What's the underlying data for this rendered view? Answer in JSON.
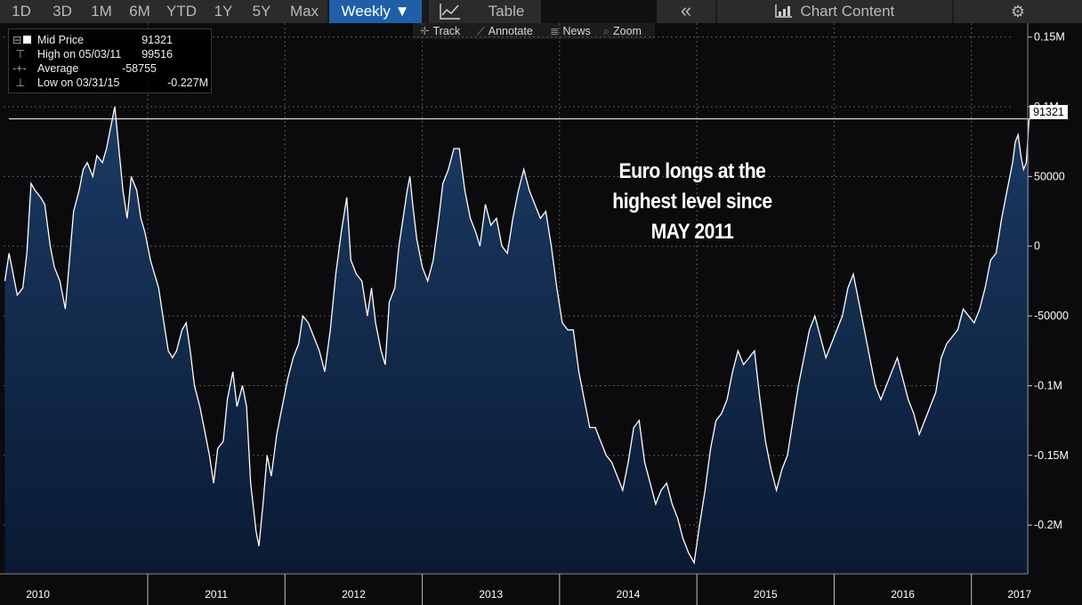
{
  "toolbar": {
    "ranges": [
      "1D",
      "3D",
      "1M",
      "6M",
      "YTD",
      "1Y",
      "5Y",
      "Max"
    ],
    "frequency": "Weekly ▼",
    "chart_icon": "line-chart-icon",
    "table": "Table",
    "collapse_icon": "double-chevron-left-icon",
    "chart_content": "Chart Content",
    "settings_icon": "gear-icon"
  },
  "subbar": {
    "track": "Track",
    "annotate": "Annotate",
    "news": "News",
    "zoom": "Zoom"
  },
  "legend": {
    "mid_label": "Mid Price",
    "mid_value": "91321",
    "high_label": "High on 05/03/11",
    "high_value": "99516",
    "avg_label": "Average",
    "avg_value": "-58755",
    "low_label": "Low on 03/31/15",
    "low_value": "-0.227M"
  },
  "annotation": {
    "line1": "Euro longs at the",
    "line2": "highest level since",
    "line3": "MAY 2011"
  },
  "last_value_label": "91321",
  "colors": {
    "line": "#ffffff",
    "area_top": "#1b3a63",
    "area_bottom": "#0a1a33",
    "grid": "#5a5a5a",
    "active_tab": "#1e5fa8"
  },
  "chart_data": {
    "type": "area",
    "y_tick_labels": [
      "0.15M",
      "0.1M",
      "50000",
      "0",
      "-50000",
      "-0.1M",
      "-0.15M",
      "-0.2M"
    ],
    "x_tick_labels": [
      "2010",
      "2011",
      "2012",
      "2013",
      "2014",
      "2015",
      "2016",
      "2017"
    ],
    "ylim": [
      -235000,
      160000
    ],
    "xlim": [
      2009.95,
      2017.3
    ],
    "grid": true,
    "last_value": 91321,
    "points": [
      [
        2009.96,
        -25000
      ],
      [
        2009.99,
        -5000
      ],
      [
        2010.02,
        -20000
      ],
      [
        2010.05,
        -35000
      ],
      [
        2010.09,
        -30000
      ],
      [
        2010.12,
        -5000
      ],
      [
        2010.15,
        45000
      ],
      [
        2010.18,
        40000
      ],
      [
        2010.22,
        35000
      ],
      [
        2010.25,
        30000
      ],
      [
        2010.29,
        0
      ],
      [
        2010.32,
        -15000
      ],
      [
        2010.36,
        -25000
      ],
      [
        2010.4,
        -45000
      ],
      [
        2010.43,
        -10000
      ],
      [
        2010.46,
        25000
      ],
      [
        2010.5,
        40000
      ],
      [
        2010.53,
        55000
      ],
      [
        2010.56,
        60000
      ],
      [
        2010.6,
        50000
      ],
      [
        2010.63,
        65000
      ],
      [
        2010.67,
        60000
      ],
      [
        2010.7,
        70000
      ],
      [
        2010.73,
        85000
      ],
      [
        2010.76,
        100000
      ],
      [
        2010.79,
        70000
      ],
      [
        2010.82,
        40000
      ],
      [
        2010.85,
        20000
      ],
      [
        2010.88,
        50000
      ],
      [
        2010.92,
        40000
      ],
      [
        2010.95,
        20000
      ],
      [
        2010.98,
        10000
      ],
      [
        2011.02,
        -10000
      ],
      [
        2011.05,
        -20000
      ],
      [
        2011.08,
        -30000
      ],
      [
        2011.11,
        -50000
      ],
      [
        2011.15,
        -75000
      ],
      [
        2011.18,
        -80000
      ],
      [
        2011.21,
        -75000
      ],
      [
        2011.25,
        -60000
      ],
      [
        2011.28,
        -55000
      ],
      [
        2011.31,
        -75000
      ],
      [
        2011.34,
        -100000
      ],
      [
        2011.38,
        -115000
      ],
      [
        2011.41,
        -130000
      ],
      [
        2011.45,
        -150000
      ],
      [
        2011.48,
        -170000
      ],
      [
        2011.51,
        -145000
      ],
      [
        2011.55,
        -140000
      ],
      [
        2011.58,
        -110000
      ],
      [
        2011.62,
        -90000
      ],
      [
        2011.65,
        -115000
      ],
      [
        2011.69,
        -100000
      ],
      [
        2011.72,
        -115000
      ],
      [
        2011.75,
        -170000
      ],
      [
        2011.79,
        -205000
      ],
      [
        2011.81,
        -215000
      ],
      [
        2011.84,
        -185000
      ],
      [
        2011.87,
        -150000
      ],
      [
        2011.9,
        -165000
      ],
      [
        2011.94,
        -135000
      ],
      [
        2011.98,
        -115000
      ],
      [
        2012.02,
        -95000
      ],
      [
        2012.06,
        -80000
      ],
      [
        2012.1,
        -70000
      ],
      [
        2012.13,
        -50000
      ],
      [
        2012.17,
        -55000
      ],
      [
        2012.21,
        -65000
      ],
      [
        2012.25,
        -75000
      ],
      [
        2012.29,
        -90000
      ],
      [
        2012.33,
        -60000
      ],
      [
        2012.37,
        -20000
      ],
      [
        2012.41,
        10000
      ],
      [
        2012.45,
        35000
      ],
      [
        2012.48,
        -10000
      ],
      [
        2012.52,
        -20000
      ],
      [
        2012.56,
        -25000
      ],
      [
        2012.6,
        -50000
      ],
      [
        2012.63,
        -30000
      ],
      [
        2012.66,
        -55000
      ],
      [
        2012.7,
        -75000
      ],
      [
        2012.73,
        -85000
      ],
      [
        2012.76,
        -40000
      ],
      [
        2012.8,
        -30000
      ],
      [
        2012.83,
        0
      ],
      [
        2012.86,
        20000
      ],
      [
        2012.89,
        40000
      ],
      [
        2012.91,
        50000
      ],
      [
        2012.93,
        30000
      ],
      [
        2012.96,
        5000
      ],
      [
        2013.0,
        -15000
      ],
      [
        2013.04,
        -25000
      ],
      [
        2013.08,
        -10000
      ],
      [
        2013.12,
        20000
      ],
      [
        2013.15,
        45000
      ],
      [
        2013.19,
        55000
      ],
      [
        2013.23,
        70000
      ],
      [
        2013.27,
        70000
      ],
      [
        2013.31,
        40000
      ],
      [
        2013.35,
        20000
      ],
      [
        2013.39,
        10000
      ],
      [
        2013.42,
        0
      ],
      [
        2013.46,
        30000
      ],
      [
        2013.5,
        15000
      ],
      [
        2013.54,
        20000
      ],
      [
        2013.58,
        0
      ],
      [
        2013.62,
        -5000
      ],
      [
        2013.66,
        20000
      ],
      [
        2013.7,
        40000
      ],
      [
        2013.74,
        55000
      ],
      [
        2013.78,
        40000
      ],
      [
        2013.82,
        30000
      ],
      [
        2013.86,
        20000
      ],
      [
        2013.9,
        25000
      ],
      [
        2013.94,
        0
      ],
      [
        2013.98,
        -30000
      ],
      [
        2014.02,
        -55000
      ],
      [
        2014.06,
        -60000
      ],
      [
        2014.1,
        -60000
      ],
      [
        2014.14,
        -90000
      ],
      [
        2014.18,
        -110000
      ],
      [
        2014.22,
        -130000
      ],
      [
        2014.26,
        -130000
      ],
      [
        2014.3,
        -140000
      ],
      [
        2014.34,
        -150000
      ],
      [
        2014.38,
        -155000
      ],
      [
        2014.42,
        -165000
      ],
      [
        2014.46,
        -175000
      ],
      [
        2014.5,
        -155000
      ],
      [
        2014.54,
        -130000
      ],
      [
        2014.58,
        -125000
      ],
      [
        2014.62,
        -155000
      ],
      [
        2014.66,
        -170000
      ],
      [
        2014.7,
        -185000
      ],
      [
        2014.74,
        -175000
      ],
      [
        2014.78,
        -170000
      ],
      [
        2014.82,
        -185000
      ],
      [
        2014.86,
        -195000
      ],
      [
        2014.9,
        -210000
      ],
      [
        2014.94,
        -220000
      ],
      [
        2014.98,
        -227000
      ],
      [
        2015.02,
        -200000
      ],
      [
        2015.06,
        -175000
      ],
      [
        2015.1,
        -145000
      ],
      [
        2015.14,
        -125000
      ],
      [
        2015.18,
        -120000
      ],
      [
        2015.22,
        -110000
      ],
      [
        2015.26,
        -90000
      ],
      [
        2015.3,
        -75000
      ],
      [
        2015.34,
        -85000
      ],
      [
        2015.38,
        -80000
      ],
      [
        2015.42,
        -75000
      ],
      [
        2015.46,
        -110000
      ],
      [
        2015.5,
        -140000
      ],
      [
        2015.54,
        -160000
      ],
      [
        2015.58,
        -175000
      ],
      [
        2015.62,
        -160000
      ],
      [
        2015.66,
        -150000
      ],
      [
        2015.7,
        -125000
      ],
      [
        2015.74,
        -100000
      ],
      [
        2015.78,
        -80000
      ],
      [
        2015.82,
        -60000
      ],
      [
        2015.86,
        -50000
      ],
      [
        2015.9,
        -65000
      ],
      [
        2015.94,
        -80000
      ],
      [
        2015.98,
        -70000
      ],
      [
        2016.02,
        -60000
      ],
      [
        2016.06,
        -50000
      ],
      [
        2016.1,
        -30000
      ],
      [
        2016.14,
        -20000
      ],
      [
        2016.18,
        -40000
      ],
      [
        2016.22,
        -60000
      ],
      [
        2016.26,
        -80000
      ],
      [
        2016.3,
        -100000
      ],
      [
        2016.34,
        -110000
      ],
      [
        2016.38,
        -100000
      ],
      [
        2016.42,
        -90000
      ],
      [
        2016.46,
        -80000
      ],
      [
        2016.5,
        -95000
      ],
      [
        2016.54,
        -110000
      ],
      [
        2016.58,
        -120000
      ],
      [
        2016.62,
        -135000
      ],
      [
        2016.66,
        -125000
      ],
      [
        2016.7,
        -115000
      ],
      [
        2016.74,
        -105000
      ],
      [
        2016.78,
        -80000
      ],
      [
        2016.82,
        -70000
      ],
      [
        2016.86,
        -65000
      ],
      [
        2016.9,
        -60000
      ],
      [
        2016.94,
        -45000
      ],
      [
        2016.98,
        -50000
      ],
      [
        2017.02,
        -55000
      ],
      [
        2017.06,
        -45000
      ],
      [
        2017.1,
        -30000
      ],
      [
        2017.14,
        -10000
      ],
      [
        2017.18,
        -5000
      ],
      [
        2017.22,
        20000
      ],
      [
        2017.26,
        40000
      ],
      [
        2017.3,
        60000
      ],
      [
        2017.32,
        75000
      ],
      [
        2017.34,
        80000
      ],
      [
        2017.36,
        65000
      ],
      [
        2017.38,
        55000
      ],
      [
        2017.4,
        60000
      ],
      [
        2017.42,
        91321
      ]
    ]
  }
}
